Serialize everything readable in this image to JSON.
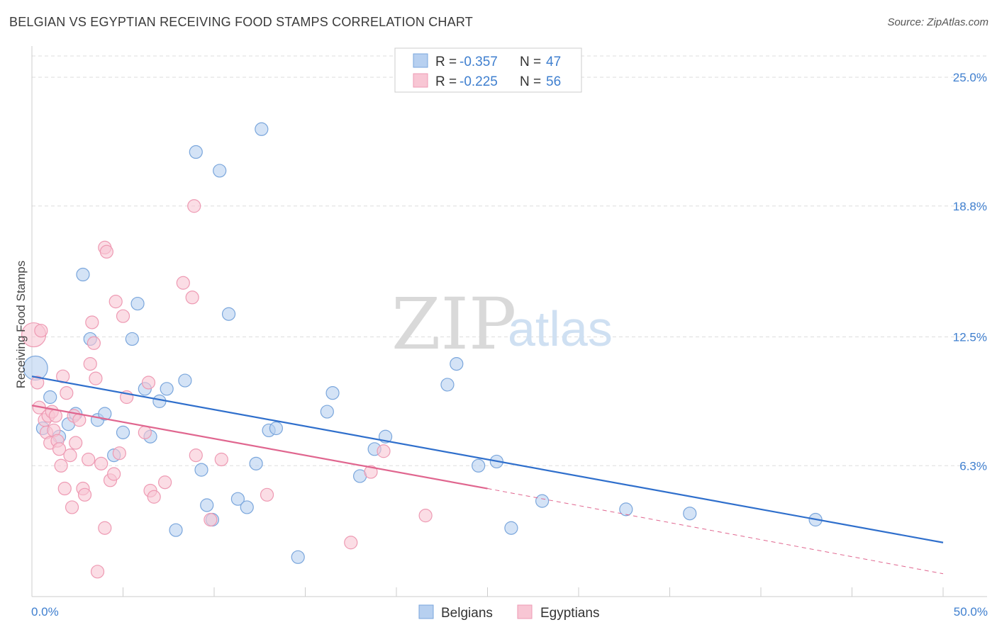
{
  "header": {
    "title": "BELGIAN VS EGYPTIAN RECEIVING FOOD STAMPS CORRELATION CHART",
    "source": "Source: ZipAtlas.com"
  },
  "watermark": {
    "zip": "ZIP",
    "atlas": "atlas"
  },
  "legend": {
    "rows": [
      {
        "r_label": "R =",
        "r_value": "-0.357",
        "n_label": "N =",
        "n_value": "47"
      },
      {
        "r_label": "R =",
        "r_value": "-0.225",
        "n_label": "N =",
        "n_value": "56"
      }
    ]
  },
  "colors": {
    "blue_fill": "#b7d0f0",
    "blue_stroke": "#7aa6dc",
    "blue_line": "#2f6fcc",
    "pink_fill": "#f8c6d4",
    "pink_stroke": "#ee9ab3",
    "pink_line": "#e0668f",
    "tick_text": "#3f7fcf",
    "grid": "#dddddd"
  },
  "chart_data": {
    "type": "scatter",
    "title": "BELGIAN VS EGYPTIAN RECEIVING FOOD STAMPS CORRELATION CHART",
    "xlabel": "",
    "ylabel": "Receiving Food Stamps",
    "xlim": [
      0,
      50
    ],
    "ylim": [
      0,
      26.5
    ],
    "x_tick_labels": [
      "0.0%",
      "50.0%"
    ],
    "y_ticks": [
      6.3,
      12.5,
      18.8,
      25.0
    ],
    "y_tick_labels": [
      "6.3%",
      "12.5%",
      "18.8%",
      "25.0%"
    ],
    "grid": "horizontal dashed",
    "legend_position": "top-center",
    "series": [
      {
        "name": "Belgians",
        "color": "#b7d0f0",
        "regression": {
          "x": [
            0,
            50
          ],
          "y": [
            10.6,
            2.6
          ]
        },
        "points": [
          [
            0.2,
            11.0
          ],
          [
            1.0,
            9.6
          ],
          [
            0.6,
            8.1
          ],
          [
            1.5,
            7.7
          ],
          [
            2.0,
            8.3
          ],
          [
            2.4,
            8.8
          ],
          [
            2.8,
            15.5
          ],
          [
            3.2,
            12.4
          ],
          [
            3.6,
            8.5
          ],
          [
            4.0,
            8.8
          ],
          [
            4.5,
            6.8
          ],
          [
            5.0,
            7.9
          ],
          [
            5.5,
            12.4
          ],
          [
            5.8,
            14.1
          ],
          [
            6.2,
            10.0
          ],
          [
            6.5,
            7.7
          ],
          [
            7.0,
            9.4
          ],
          [
            7.4,
            10.0
          ],
          [
            7.9,
            3.2
          ],
          [
            8.4,
            10.4
          ],
          [
            9.0,
            21.4
          ],
          [
            9.3,
            6.1
          ],
          [
            9.6,
            4.4
          ],
          [
            9.9,
            3.7
          ],
          [
            10.3,
            20.5
          ],
          [
            10.8,
            13.6
          ],
          [
            11.3,
            4.7
          ],
          [
            11.8,
            4.3
          ],
          [
            12.3,
            6.4
          ],
          [
            12.6,
            22.5
          ],
          [
            13.0,
            8.0
          ],
          [
            13.4,
            8.1
          ],
          [
            14.6,
            1.9
          ],
          [
            16.2,
            8.9
          ],
          [
            16.5,
            9.8
          ],
          [
            18.0,
            5.8
          ],
          [
            18.8,
            7.1
          ],
          [
            19.4,
            7.7
          ],
          [
            22.8,
            10.2
          ],
          [
            23.3,
            11.2
          ],
          [
            24.5,
            6.3
          ],
          [
            25.5,
            6.5
          ],
          [
            26.3,
            3.3
          ],
          [
            28.0,
            4.6
          ],
          [
            32.6,
            4.2
          ],
          [
            36.1,
            4.0
          ],
          [
            43.0,
            3.7
          ]
        ]
      },
      {
        "name": "Egyptians",
        "color": "#f8c6d4",
        "regression": {
          "x": [
            0,
            25
          ],
          "y": [
            9.2,
            5.2
          ]
        },
        "regression_extrapolated": {
          "x": [
            25,
            50
          ],
          "y": [
            5.2,
            1.1
          ]
        },
        "points": [
          [
            0.1,
            12.6
          ],
          [
            0.3,
            10.3
          ],
          [
            0.4,
            9.1
          ],
          [
            0.5,
            12.8
          ],
          [
            0.7,
            8.5
          ],
          [
            0.8,
            7.9
          ],
          [
            0.9,
            8.7
          ],
          [
            1.0,
            7.4
          ],
          [
            1.1,
            8.9
          ],
          [
            1.2,
            8.0
          ],
          [
            1.3,
            8.7
          ],
          [
            1.4,
            7.5
          ],
          [
            1.5,
            7.1
          ],
          [
            1.6,
            6.3
          ],
          [
            1.7,
            10.6
          ],
          [
            1.8,
            5.2
          ],
          [
            1.9,
            9.8
          ],
          [
            2.1,
            6.8
          ],
          [
            2.2,
            4.3
          ],
          [
            2.3,
            8.7
          ],
          [
            2.4,
            7.4
          ],
          [
            2.6,
            8.5
          ],
          [
            2.8,
            5.2
          ],
          [
            2.9,
            4.9
          ],
          [
            3.1,
            6.6
          ],
          [
            3.2,
            11.2
          ],
          [
            3.3,
            13.2
          ],
          [
            3.4,
            12.2
          ],
          [
            3.5,
            10.5
          ],
          [
            3.6,
            1.2
          ],
          [
            3.8,
            6.4
          ],
          [
            4.0,
            16.8
          ],
          [
            4.1,
            16.6
          ],
          [
            4.3,
            5.6
          ],
          [
            4.5,
            5.9
          ],
          [
            4.6,
            14.2
          ],
          [
            4.8,
            6.9
          ],
          [
            5.0,
            13.5
          ],
          [
            5.2,
            9.6
          ],
          [
            6.2,
            7.9
          ],
          [
            6.4,
            10.3
          ],
          [
            6.5,
            5.1
          ],
          [
            6.7,
            4.8
          ],
          [
            7.3,
            5.5
          ],
          [
            8.3,
            15.1
          ],
          [
            8.8,
            14.4
          ],
          [
            8.9,
            18.8
          ],
          [
            9.0,
            6.8
          ],
          [
            9.8,
            3.7
          ],
          [
            10.4,
            6.6
          ],
          [
            12.9,
            4.9
          ],
          [
            17.5,
            2.6
          ],
          [
            18.6,
            6.0
          ],
          [
            19.3,
            7.0
          ],
          [
            21.6,
            3.9
          ],
          [
            4.0,
            3.3
          ]
        ]
      }
    ]
  }
}
